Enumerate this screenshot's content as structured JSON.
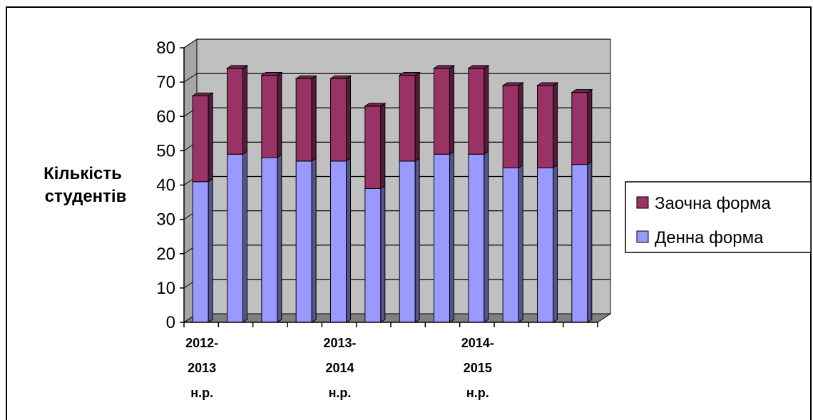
{
  "chart_data": {
    "type": "bar",
    "stacked": true,
    "three_d": true,
    "title": "",
    "ylabel": [
      "Кількість",
      "студентів"
    ],
    "xlabel": "",
    "ylim": [
      0,
      80
    ],
    "yticks": [
      0,
      10,
      20,
      30,
      40,
      50,
      60,
      70,
      80
    ],
    "grid": true,
    "legend_position": "right",
    "categories": [
      "2012-2013 н.р.",
      "",
      "",
      "",
      "2013-2014 н.р.",
      "",
      "",
      "",
      "2014-2015 н.р.",
      "",
      "",
      ""
    ],
    "category_label_lines": [
      [
        "2012-",
        "2013",
        "н.р."
      ],
      [
        "2013-",
        "2014",
        "н.р."
      ],
      [
        "2014-",
        "2015",
        "н.р."
      ]
    ],
    "series": [
      {
        "name": "Денна форма",
        "color": "#9999ff",
        "values": [
          41,
          49,
          48,
          47,
          47,
          39,
          47,
          49,
          49,
          45,
          45,
          46
        ]
      },
      {
        "name": "Заочна форма",
        "color": "#993366",
        "values": [
          25,
          25,
          24,
          24,
          24,
          24,
          25,
          25,
          25,
          24,
          24,
          21
        ]
      }
    ],
    "legend": [
      {
        "name": "Заочна форма",
        "color": "#993366"
      },
      {
        "name": "Денна форма",
        "color": "#9999ff"
      }
    ]
  }
}
